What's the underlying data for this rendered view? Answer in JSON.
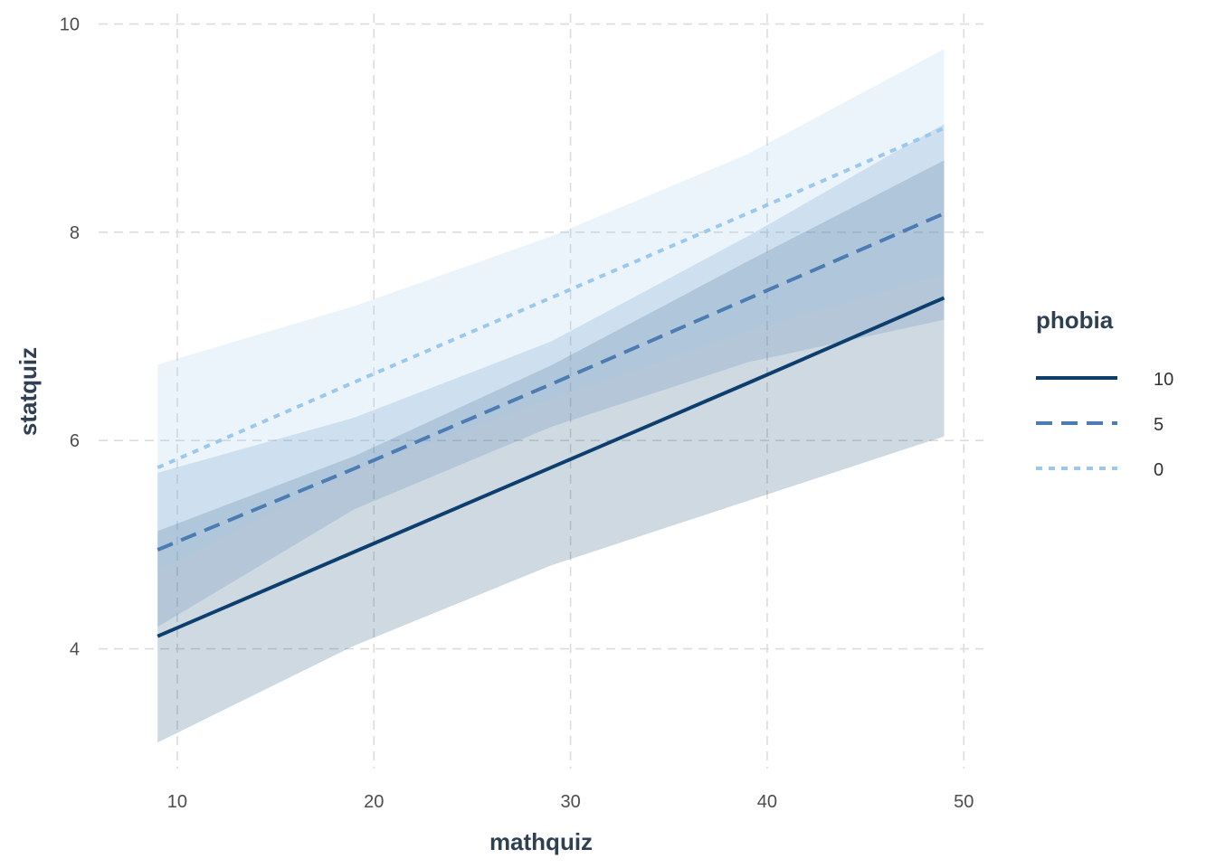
{
  "chart_data": {
    "type": "line",
    "xlabel": "mathquiz",
    "ylabel": "statquiz",
    "xlim": [
      6,
      51
    ],
    "ylim": [
      2.85,
      10.1
    ],
    "x_ticks": [
      10,
      20,
      30,
      40,
      50
    ],
    "y_ticks": [
      4,
      6,
      8,
      10
    ],
    "grid": true,
    "legend": {
      "title": "phobia",
      "position": "right"
    },
    "x": [
      9,
      19,
      29,
      39,
      49
    ],
    "series": [
      {
        "name": "10",
        "color": "#0d3f6e",
        "linestyle": "solid",
        "values": [
          4.12,
          4.93,
          5.74,
          6.55,
          7.37
        ],
        "lower": [
          3.1,
          4.03,
          4.8,
          5.42,
          6.04
        ],
        "upper": [
          5.13,
          5.85,
          6.72,
          7.72,
          8.69
        ]
      },
      {
        "name": "5",
        "color": "#4d7cb3",
        "linestyle": "dashed",
        "values": [
          4.95,
          5.73,
          6.54,
          7.36,
          8.18
        ],
        "lower": [
          4.21,
          5.34,
          6.13,
          6.75,
          7.16
        ],
        "upper": [
          5.69,
          6.22,
          6.95,
          7.96,
          9.04
        ]
      },
      {
        "name": "0",
        "color": "#9bc9ed",
        "linestyle": "dotted",
        "values": [
          5.74,
          6.56,
          7.37,
          8.18,
          9.0
        ],
        "lower": [
          4.75,
          5.72,
          6.4,
          7.05,
          7.6
        ],
        "upper": [
          6.73,
          7.29,
          7.96,
          8.75,
          9.76
        ]
      }
    ]
  }
}
